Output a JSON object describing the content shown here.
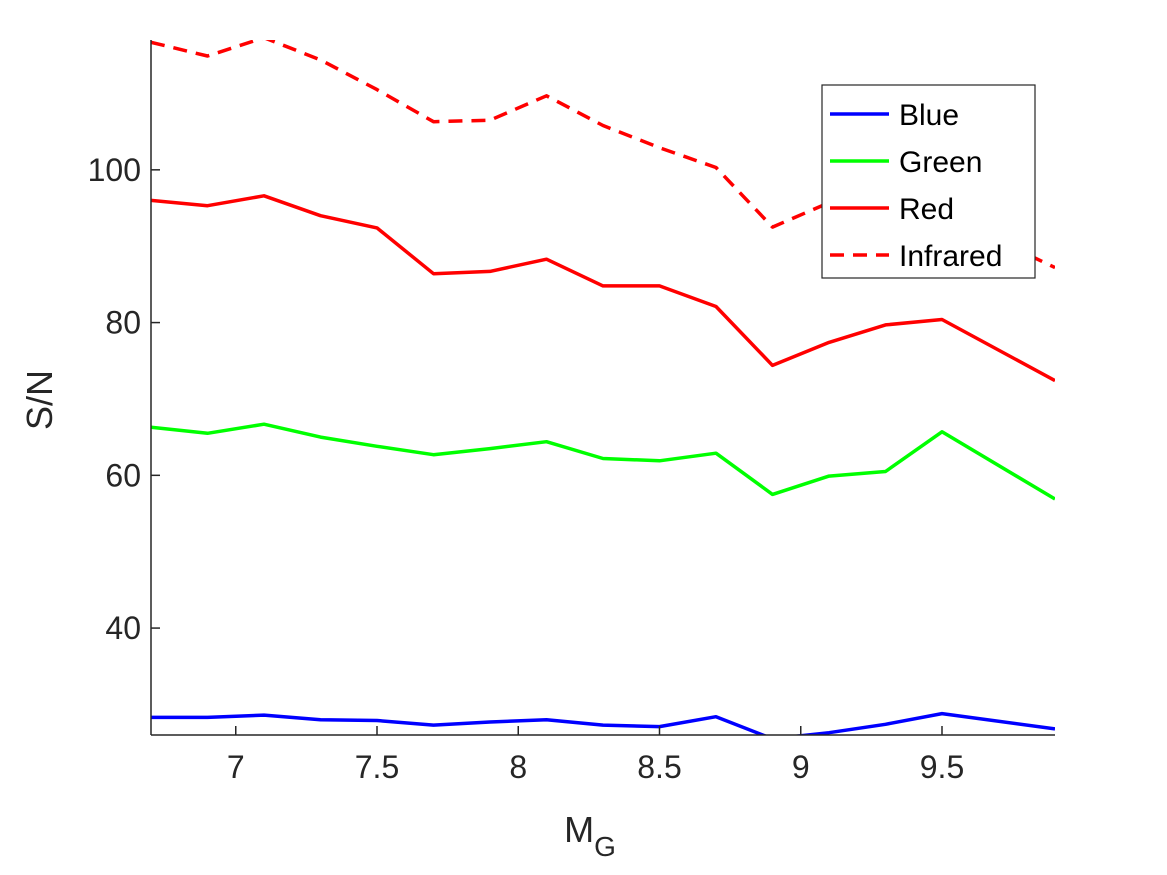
{
  "chart_data": {
    "type": "line",
    "xlabel": "M",
    "xlabel_sub": "G",
    "ylabel": "S/N",
    "xlim": [
      6.7,
      9.9
    ],
    "ylim": [
      26,
      117
    ],
    "xticks": [
      7,
      7.5,
      8,
      8.5,
      9,
      9.5
    ],
    "xtick_labels": [
      "7",
      "7.5",
      "8",
      "8.5",
      "9",
      "9.5"
    ],
    "yticks": [
      40,
      60,
      80,
      100
    ],
    "ytick_labels": [
      "40",
      "60",
      "80",
      "100"
    ],
    "grid": false,
    "legend_position": "top-right",
    "x": [
      6.7,
      6.9,
      7.1,
      7.3,
      7.5,
      7.7,
      7.9,
      8.1,
      8.3,
      8.5,
      8.7,
      8.9,
      9.1,
      9.3,
      9.5,
      9.9
    ],
    "series": [
      {
        "name": "Blue",
        "color": "#0000ff",
        "dash": "solid",
        "values": [
          28.3,
          28.3,
          28.6,
          28.0,
          27.9,
          27.3,
          27.7,
          28.0,
          27.3,
          27.1,
          28.4,
          25.5,
          26.3,
          27.4,
          28.8,
          26.8
        ]
      },
      {
        "name": "Green",
        "color": "#00ff00",
        "dash": "solid",
        "values": [
          66.3,
          65.5,
          66.7,
          65.0,
          63.8,
          62.7,
          63.5,
          64.4,
          62.2,
          61.9,
          62.9,
          57.5,
          59.9,
          60.5,
          65.7,
          56.9
        ]
      },
      {
        "name": "Red",
        "color": "#ff0000",
        "dash": "solid",
        "values": [
          96.0,
          95.3,
          96.6,
          94.0,
          92.4,
          86.4,
          86.7,
          88.3,
          84.8,
          84.8,
          82.1,
          74.4,
          77.4,
          79.7,
          80.4,
          72.4
        ]
      },
      {
        "name": "Infrared",
        "color": "#ff0000",
        "dash": "dashed",
        "values": [
          116.7,
          114.9,
          117.3,
          114.4,
          110.5,
          106.3,
          106.5,
          109.7,
          105.8,
          102.9,
          100.3,
          92.5,
          95.7,
          96.5,
          94.3,
          87.2
        ]
      }
    ]
  }
}
